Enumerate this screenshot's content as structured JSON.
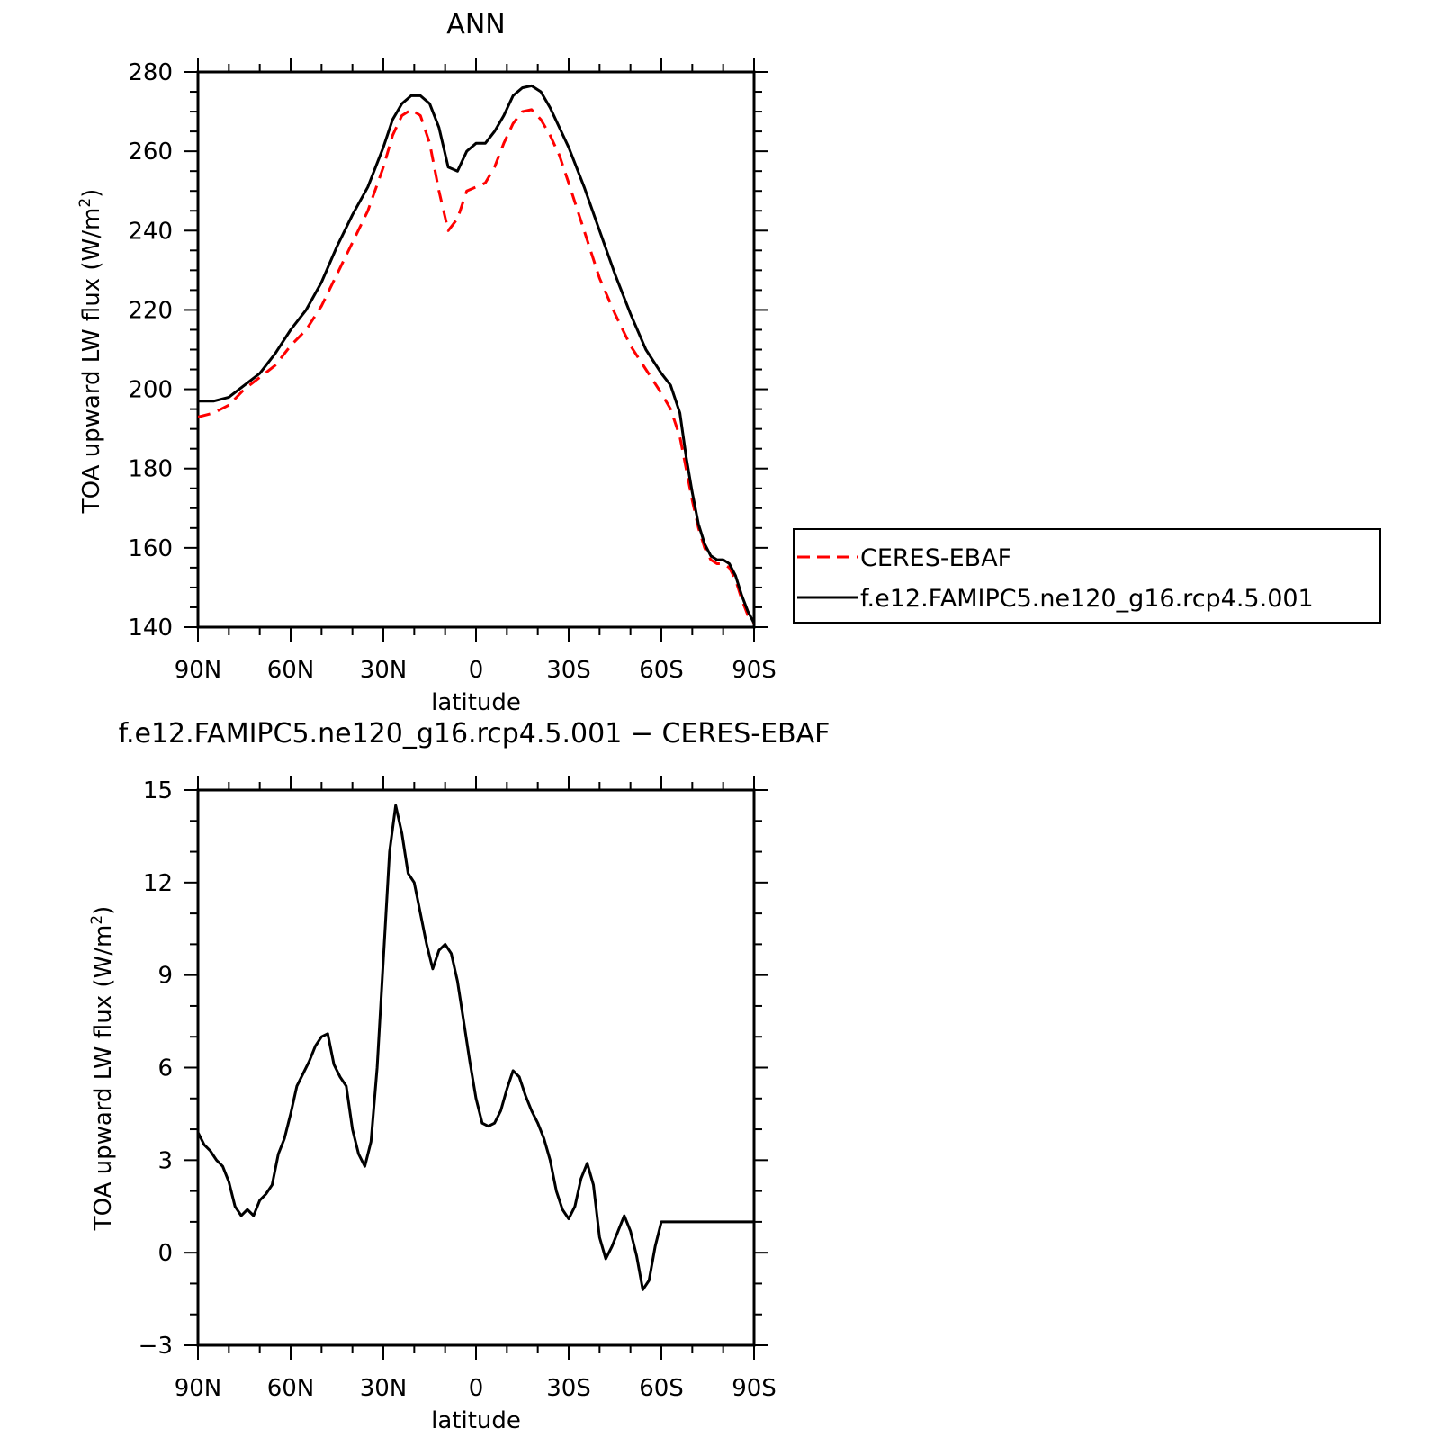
{
  "chart_data": [
    {
      "type": "line",
      "title": "ANN",
      "xlabel": "latitude",
      "ylabel": "TOA upward LW flux (W/m²)",
      "ylabel_main": "TOA upward LW flux (W/m",
      "ylabel_sup": "2",
      "ylabel_end": ")",
      "x_ticks": [
        {
          "value": -90,
          "label": "90N"
        },
        {
          "value": -60,
          "label": "60N"
        },
        {
          "value": -30,
          "label": "30N"
        },
        {
          "value": 0,
          "label": "0"
        },
        {
          "value": 30,
          "label": "30S"
        },
        {
          "value": 60,
          "label": "60S"
        },
        {
          "value": 90,
          "label": "90S"
        }
      ],
      "xlim": [
        -90,
        90
      ],
      "ylim": [
        140,
        280
      ],
      "y_ticks": [
        140,
        160,
        180,
        200,
        220,
        240,
        260,
        280
      ],
      "y_minor_step": 5,
      "x_minor_step": 10,
      "legend_position": "right",
      "series": [
        {
          "name": "CERES-EBAF",
          "color": "#ff0000",
          "dash": "dashed",
          "x": [
            -90,
            -85,
            -80,
            -75,
            -70,
            -65,
            -60,
            -55,
            -50,
            -45,
            -40,
            -35,
            -30,
            -27,
            -24,
            -21,
            -18,
            -15,
            -12,
            -9,
            -6,
            -3,
            0,
            3,
            6,
            9,
            12,
            15,
            18,
            21,
            24,
            27,
            30,
            35,
            40,
            45,
            50,
            55,
            60,
            63,
            66,
            68,
            70,
            72,
            74,
            76,
            78,
            80,
            82,
            84,
            86,
            88,
            90
          ],
          "y": [
            193,
            194,
            196,
            200,
            203,
            206,
            211,
            215,
            221,
            229,
            237,
            245,
            256,
            264,
            269,
            270.5,
            269,
            262,
            250,
            240,
            243,
            250,
            251,
            252,
            256,
            262,
            267,
            270,
            270.5,
            268,
            264,
            259,
            252,
            240,
            228,
            219,
            211,
            205,
            199,
            195,
            188,
            180,
            172,
            165,
            160,
            157,
            156,
            156,
            155,
            152,
            147,
            143,
            141
          ]
        },
        {
          "name": "f.e12.FAMIPC5.ne120_g16.rcp4.5.001",
          "color": "#000000",
          "dash": "solid",
          "x": [
            -90,
            -85,
            -80,
            -75,
            -70,
            -65,
            -60,
            -55,
            -50,
            -45,
            -40,
            -35,
            -30,
            -27,
            -24,
            -21,
            -18,
            -15,
            -12,
            -9,
            -6,
            -3,
            0,
            3,
            6,
            9,
            12,
            15,
            18,
            21,
            24,
            27,
            30,
            35,
            40,
            45,
            50,
            55,
            60,
            63,
            66,
            68,
            70,
            72,
            74,
            76,
            78,
            80,
            82,
            84,
            86,
            88,
            90
          ],
          "y": [
            197,
            197,
            198,
            201,
            204,
            209,
            215,
            220,
            227,
            236,
            244,
            251,
            261,
            268,
            272,
            274,
            274,
            272,
            266,
            256,
            255,
            260,
            262,
            262,
            265,
            269,
            274,
            276,
            276.5,
            275,
            271,
            266,
            261,
            251,
            240,
            229,
            219,
            210,
            204,
            201,
            194,
            183,
            174,
            166,
            161,
            158,
            157,
            157,
            156,
            153,
            148,
            144,
            141
          ]
        }
      ]
    },
    {
      "type": "line",
      "title": "f.e12.FAMIPC5.ne120_g16.rcp4.5.001 − CERES-EBAF",
      "xlabel": "latitude",
      "ylabel": "TOA upward LW flux (W/m²)",
      "ylabel_main": "TOA upward LW flux (W/m",
      "ylabel_sup": "2",
      "ylabel_end": ")",
      "x_ticks": [
        {
          "value": -90,
          "label": "90N"
        },
        {
          "value": -60,
          "label": "60N"
        },
        {
          "value": -30,
          "label": "30N"
        },
        {
          "value": 0,
          "label": "0"
        },
        {
          "value": 30,
          "label": "30S"
        },
        {
          "value": 60,
          "label": "60S"
        },
        {
          "value": 90,
          "label": "90S"
        }
      ],
      "xlim": [
        -90,
        90
      ],
      "ylim": [
        -3,
        15
      ],
      "y_ticks": [
        -3,
        0,
        3,
        6,
        9,
        12,
        15
      ],
      "y_tick_labels": [
        "−3",
        "0",
        "3",
        "6",
        "9",
        "12",
        "15"
      ],
      "y_minor_step": 1,
      "x_minor_step": 10,
      "series": [
        {
          "name": "",
          "color": "#000000",
          "dash": "solid",
          "x": [
            -90,
            -88,
            -86,
            -84,
            -82,
            -80,
            -78,
            -76,
            -74,
            -72,
            -70,
            -68,
            -66,
            -64,
            -62,
            -60,
            -58,
            -56,
            -54,
            -52,
            -50,
            -48,
            -46,
            -44,
            -42,
            -40,
            -38,
            -36,
            -34,
            -32,
            -30,
            -28,
            -26,
            -24,
            -22,
            -20,
            -18,
            -16,
            -14,
            -12,
            -10,
            -8,
            -6,
            -4,
            -2,
            0,
            2,
            4,
            6,
            8,
            10,
            12,
            14,
            16,
            18,
            20,
            22,
            24,
            26,
            28,
            30,
            32,
            34,
            36,
            38,
            40,
            42,
            44,
            46,
            48,
            50,
            52,
            54,
            56,
            58,
            60,
            62,
            64,
            66,
            68,
            70,
            72,
            74,
            76,
            78,
            80,
            82,
            84,
            86,
            88,
            90
          ],
          "y": [
            3.9,
            3.5,
            3.3,
            3.0,
            2.8,
            2.3,
            1.5,
            1.2,
            1.4,
            1.2,
            1.7,
            1.9,
            2.2,
            3.2,
            3.7,
            4.5,
            5.4,
            5.8,
            6.2,
            6.7,
            7.0,
            7.1,
            6.1,
            5.7,
            5.4,
            4.0,
            3.2,
            2.8,
            3.6,
            6.0,
            9.5,
            13.0,
            14.5,
            13.6,
            12.3,
            12.0,
            11.0,
            10.0,
            9.2,
            9.8,
            10.0,
            9.7,
            8.8,
            7.5,
            6.2,
            5.0,
            4.2,
            4.1,
            4.2,
            4.6,
            5.3,
            5.9,
            5.7,
            5.1,
            4.6,
            4.2,
            3.7,
            3.0,
            2.0,
            1.4,
            1.1,
            1.5,
            2.4,
            2.9,
            2.2,
            0.5,
            -0.2,
            0.2,
            0.7,
            1.2,
            0.7,
            -0.1,
            -1.2,
            -0.9,
            0.2,
            1.0,
            1.0,
            1.0,
            1.0,
            1.0,
            1.0,
            1.0,
            1.0,
            1.0,
            1.0,
            1.0,
            1.0,
            1.0,
            1.0,
            1.0,
            1.0
          ]
        }
      ]
    }
  ]
}
